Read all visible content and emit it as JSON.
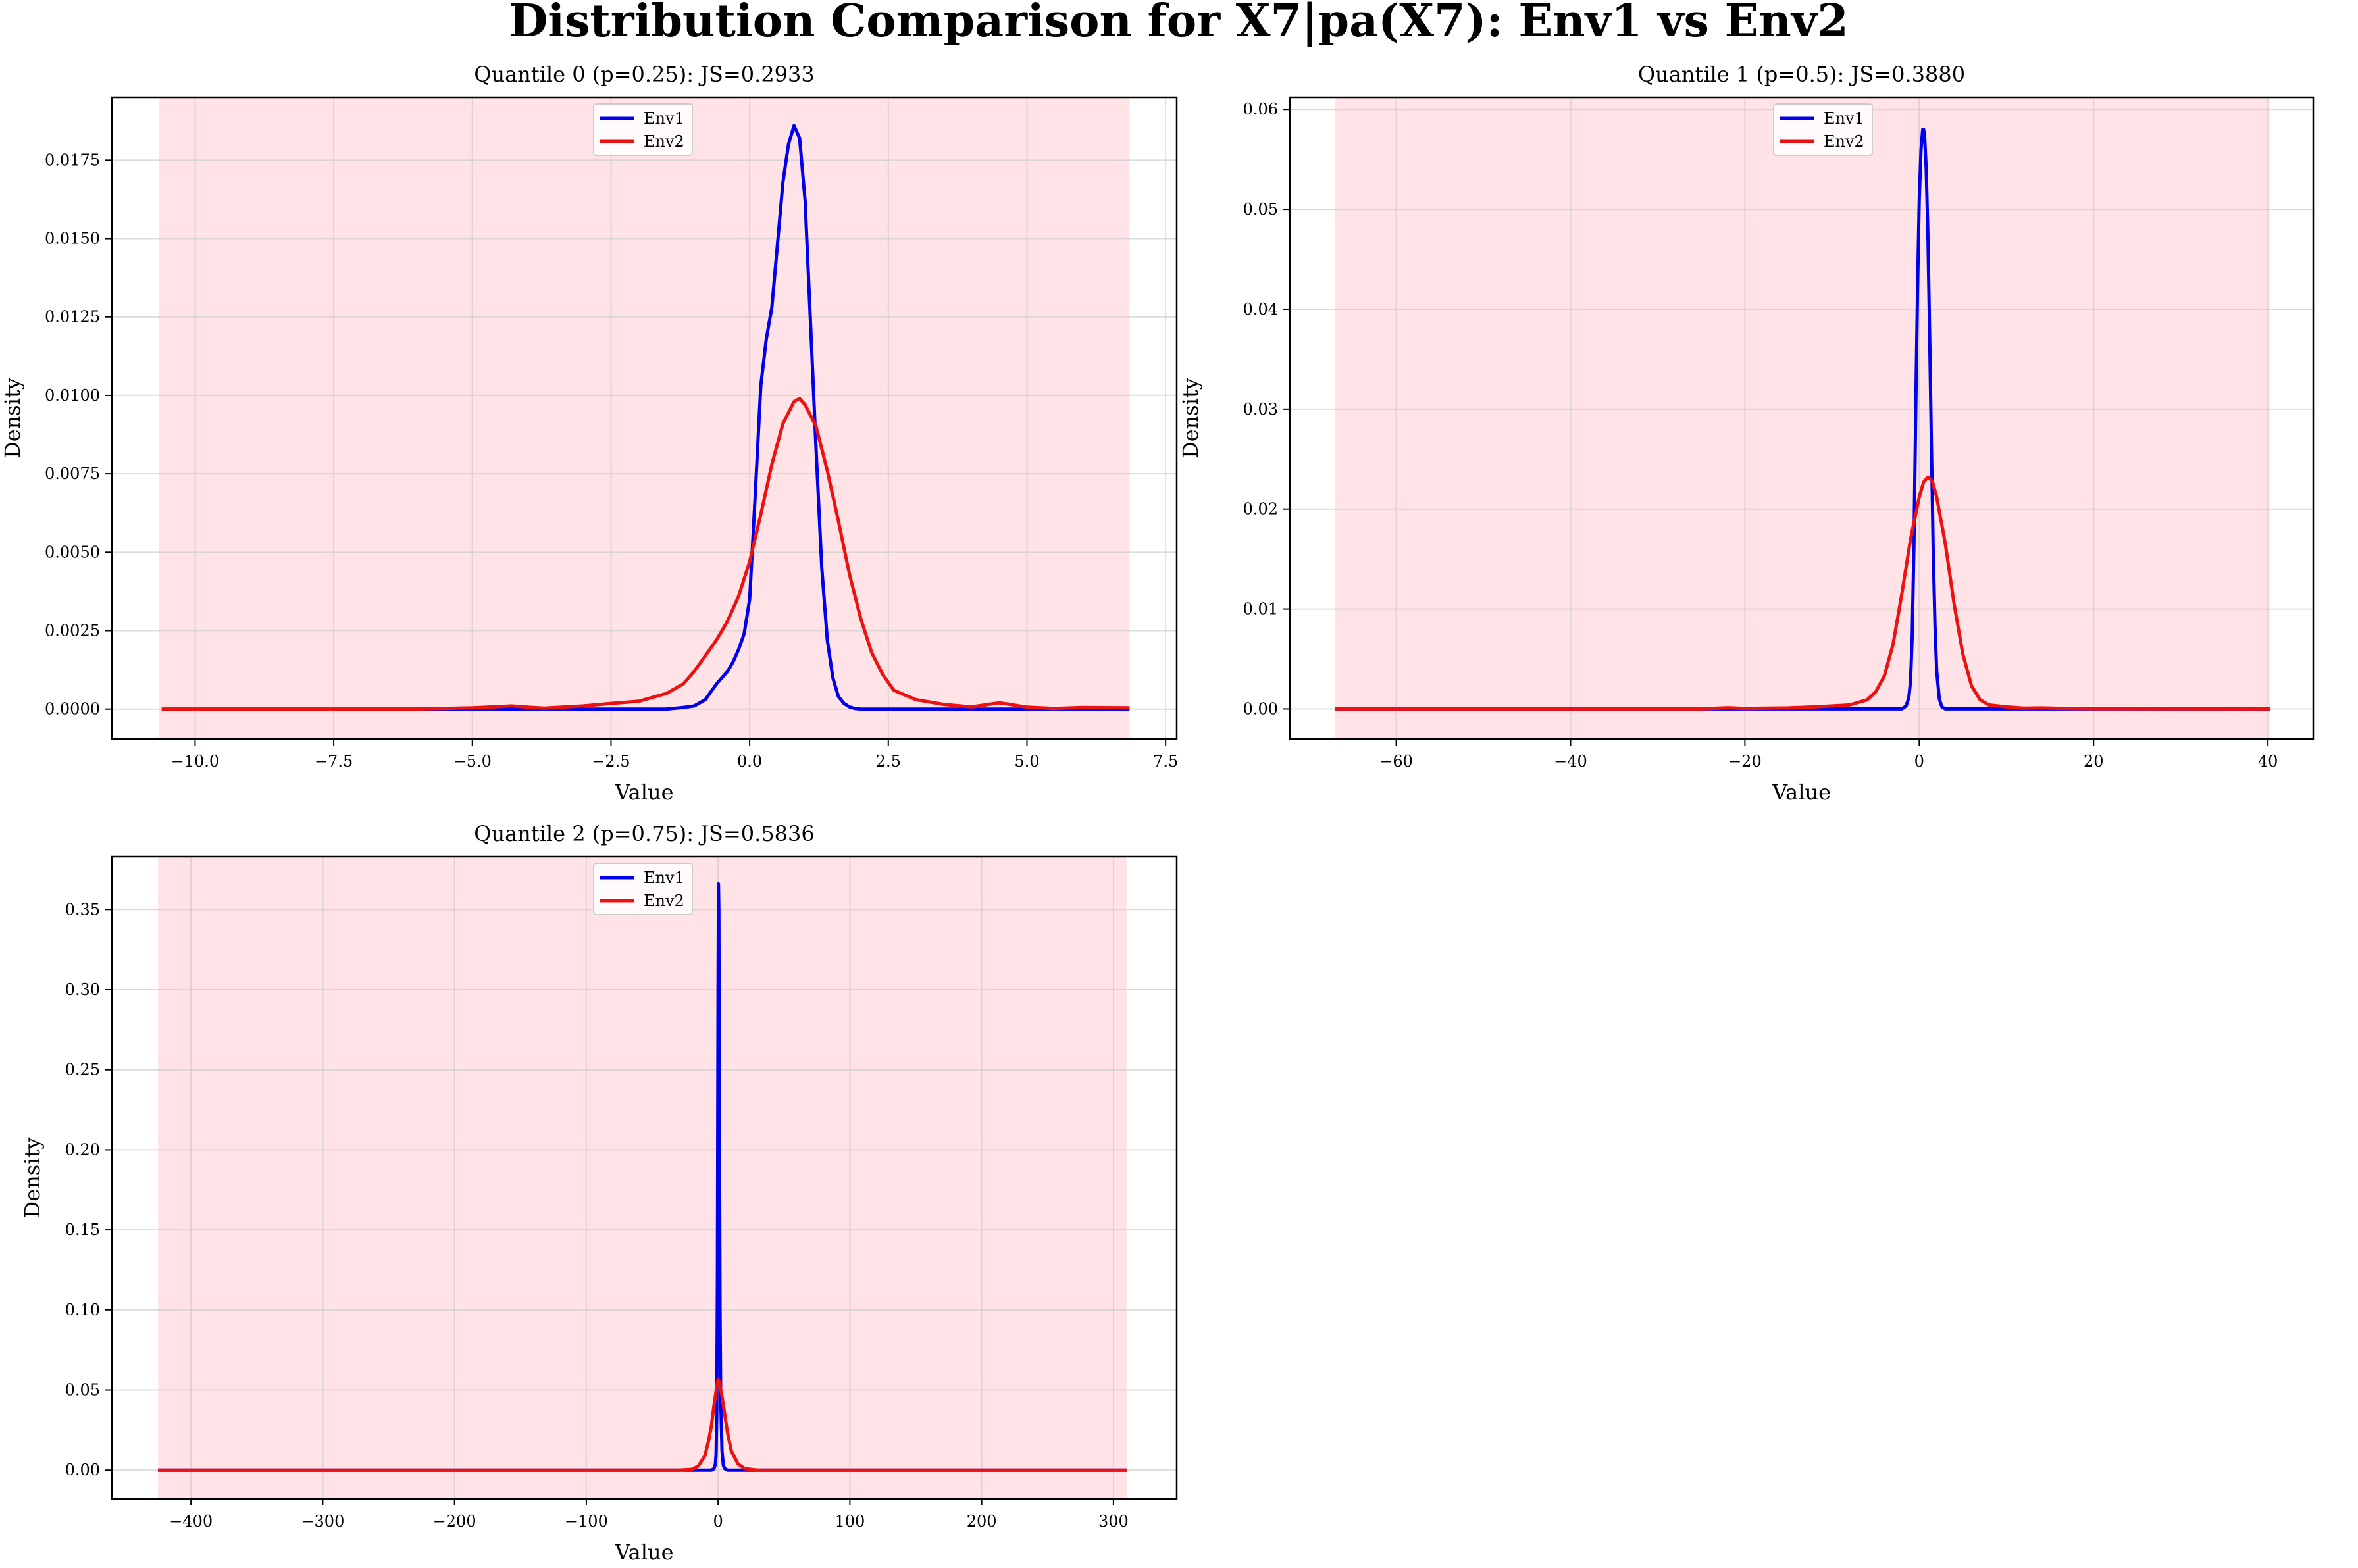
{
  "figure": {
    "title": "Distribution Comparison for X7|pa(X7): Env1 vs Env2"
  },
  "colors": {
    "env1": "#0000ee",
    "env2": "#ee1111",
    "shade": "#ffd4d9",
    "grid": "#cccccc"
  },
  "chart_data": [
    {
      "type": "line",
      "title": "Quantile 0 (p=0.25): JS=0.2933",
      "xlabel": "Value",
      "ylabel": "Density",
      "xlim": [
        -11.5,
        7.7
      ],
      "ylim": [
        -0.00095,
        0.0195
      ],
      "xticks": [
        -10,
        -7.5,
        -5,
        -2.5,
        0,
        2.5,
        5,
        7.5
      ],
      "xtick_labels": [
        "−10.0",
        "−7.5",
        "−5.0",
        "−2.5",
        "0.0",
        "2.5",
        "5.0",
        "7.5"
      ],
      "yticks": [
        0,
        0.0025,
        0.005,
        0.0075,
        0.01,
        0.0125,
        0.015,
        0.0175
      ],
      "ytick_labels": [
        "0.0000",
        "0.0025",
        "0.0050",
        "0.0075",
        "0.0100",
        "0.0125",
        "0.0150",
        "0.0175"
      ],
      "shaded_range": [
        -10.65,
        6.85
      ],
      "grid": true,
      "legend_position": "upper-center",
      "series": [
        {
          "name": "Env1",
          "x": [
            -10.6,
            -2.0,
            -1.5,
            -1.2,
            -1.0,
            -0.8,
            -0.6,
            -0.5,
            -0.4,
            -0.3,
            -0.2,
            -0.1,
            0.0,
            0.1,
            0.2,
            0.3,
            0.4,
            0.5,
            0.6,
            0.7,
            0.8,
            0.9,
            1.0,
            1.1,
            1.2,
            1.3,
            1.4,
            1.5,
            1.6,
            1.7,
            1.8,
            1.9,
            2.0,
            2.2,
            2.5,
            6.85
          ],
          "y": [
            0.0,
            0.0,
            0.0,
            5e-05,
            0.0001,
            0.0003,
            0.0008,
            0.001,
            0.0012,
            0.0015,
            0.0019,
            0.0024,
            0.0035,
            0.0068,
            0.0103,
            0.0118,
            0.0128,
            0.0148,
            0.0168,
            0.018,
            0.0186,
            0.0182,
            0.0162,
            0.0122,
            0.0082,
            0.0045,
            0.0022,
            0.001,
            0.0004,
            0.00018,
            7e-05,
            2e-05,
            0.0,
            0.0,
            0.0,
            0.0
          ]
        },
        {
          "name": "Env2",
          "x": [
            -10.6,
            -6.0,
            -5.0,
            -4.5,
            -4.3,
            -4.0,
            -3.7,
            -3.5,
            -3.0,
            -2.5,
            -2.0,
            -1.5,
            -1.2,
            -1.0,
            -0.8,
            -0.6,
            -0.4,
            -0.2,
            0.0,
            0.2,
            0.4,
            0.6,
            0.8,
            0.9,
            1.0,
            1.2,
            1.4,
            1.6,
            1.8,
            2.0,
            2.2,
            2.4,
            2.6,
            3.0,
            3.5,
            4.0,
            4.3,
            4.5,
            4.7,
            5.0,
            5.5,
            6.0,
            6.85
          ],
          "y": [
            0.0,
            0.0,
            4e-05,
            8e-05,
            0.0001,
            6e-05,
            3e-05,
            5e-05,
            0.0001,
            0.00018,
            0.00025,
            0.0005,
            0.0008,
            0.0012,
            0.0017,
            0.0022,
            0.0028,
            0.0036,
            0.0047,
            0.0062,
            0.0078,
            0.0091,
            0.0098,
            0.0099,
            0.0097,
            0.009,
            0.0076,
            0.006,
            0.0043,
            0.0029,
            0.0018,
            0.0011,
            0.0006,
            0.0003,
            0.00015,
            7e-05,
            0.00015,
            0.0002,
            0.00015,
            6e-05,
            2e-05,
            5e-05,
            4e-05
          ]
        }
      ]
    },
    {
      "type": "line",
      "title": "Quantile 1 (p=0.5): JS=0.3880",
      "xlabel": "Value",
      "ylabel": "Density",
      "xlim": [
        -72.2,
        45.2
      ],
      "ylim": [
        -0.003,
        0.0612
      ],
      "xticks": [
        -60,
        -40,
        -20,
        0,
        20,
        40
      ],
      "xtick_labels": [
        "−60",
        "−40",
        "−20",
        "0",
        "20",
        "40"
      ],
      "yticks": [
        0,
        0.01,
        0.02,
        0.03,
        0.04,
        0.05,
        0.06
      ],
      "ytick_labels": [
        "0.00",
        "0.01",
        "0.02",
        "0.03",
        "0.04",
        "0.05",
        "0.06"
      ],
      "shaded_range": [
        -67,
        40.2
      ],
      "grid": true,
      "legend_position": "upper-center",
      "series": [
        {
          "name": "Env1",
          "x": [
            -67,
            -2.0,
            -1.5,
            -1.2,
            -1.0,
            -0.8,
            -0.6,
            -0.4,
            -0.2,
            0.0,
            0.2,
            0.4,
            0.5,
            0.6,
            0.8,
            1.0,
            1.2,
            1.4,
            1.6,
            1.8,
            2.0,
            2.3,
            2.6,
            3.0,
            40.2
          ],
          "y": [
            0.0,
            0.0,
            0.0003,
            0.0011,
            0.0028,
            0.0075,
            0.017,
            0.03,
            0.042,
            0.051,
            0.056,
            0.058,
            0.058,
            0.0575,
            0.054,
            0.047,
            0.037,
            0.026,
            0.016,
            0.0085,
            0.0038,
            0.001,
            0.0002,
            0.0,
            0.0
          ]
        },
        {
          "name": "Env2",
          "x": [
            -67,
            -25,
            -22,
            -20,
            -15,
            -12,
            -10,
            -8,
            -6,
            -5,
            -4,
            -3,
            -2,
            -1,
            0,
            0.5,
            1.0,
            1.5,
            2.0,
            3.0,
            4.0,
            5.0,
            6.0,
            7.0,
            8.0,
            10.0,
            12.0,
            14.0,
            16.0,
            20.0,
            40.2
          ],
          "y": [
            0.0,
            0.0,
            0.00012,
            5e-05,
            0.0001,
            0.0002,
            0.0003,
            0.0004,
            0.0009,
            0.0017,
            0.0033,
            0.0065,
            0.0115,
            0.017,
            0.0212,
            0.0227,
            0.0232,
            0.0228,
            0.0212,
            0.0165,
            0.0105,
            0.0055,
            0.0023,
            0.0009,
            0.0004,
            0.0002,
            8e-05,
            0.0001,
            6e-05,
            2e-05,
            0.0
          ]
        }
      ]
    },
    {
      "type": "line",
      "title": "Quantile 2 (p=0.75): JS=0.5836",
      "xlabel": "Value",
      "ylabel": "Density",
      "xlim": [
        -460,
        348
      ],
      "ylim": [
        -0.018,
        0.383
      ],
      "xticks": [
        -400,
        -300,
        -200,
        -100,
        0,
        100,
        200,
        300
      ],
      "xtick_labels": [
        "−400",
        "−300",
        "−200",
        "−100",
        "0",
        "100",
        "200",
        "300"
      ],
      "yticks": [
        0,
        0.05,
        0.1,
        0.15,
        0.2,
        0.25,
        0.3,
        0.35
      ],
      "ytick_labels": [
        "0.00",
        "0.05",
        "0.10",
        "0.15",
        "0.20",
        "0.25",
        "0.30",
        "0.35"
      ],
      "shaded_range": [
        -425,
        310
      ],
      "grid": true,
      "legend_position": "upper-center",
      "series": [
        {
          "name": "Env1",
          "x": [
            -425,
            -5,
            -3,
            -2,
            -1.5,
            -1,
            -0.5,
            0,
            0.3,
            0.6,
            1.0,
            1.5,
            2.0,
            3.0,
            4.0,
            5.0,
            7.0,
            310
          ],
          "y": [
            0.0,
            0.0,
            0.001,
            0.004,
            0.01,
            0.035,
            0.12,
            0.3,
            0.366,
            0.35,
            0.22,
            0.1,
            0.045,
            0.012,
            0.003,
            0.001,
            0.0,
            0.0
          ]
        },
        {
          "name": "Env2",
          "x": [
            -425,
            -30,
            -20,
            -15,
            -10,
            -7,
            -5,
            -3,
            -1,
            0,
            1,
            3,
            5,
            7,
            10,
            15,
            20,
            30,
            310
          ],
          "y": [
            0.0,
            0.0,
            0.0005,
            0.0025,
            0.009,
            0.019,
            0.028,
            0.041,
            0.052,
            0.0565,
            0.055,
            0.046,
            0.035,
            0.024,
            0.012,
            0.004,
            0.001,
            0.0,
            0.0
          ]
        }
      ]
    }
  ]
}
